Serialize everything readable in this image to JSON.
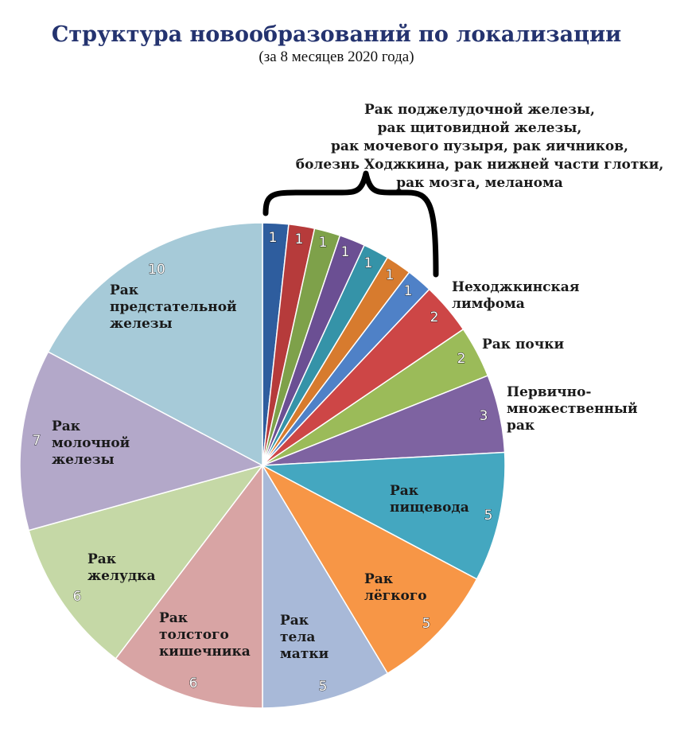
{
  "chart_data": {
    "type": "pie",
    "title": "Структура новообразований по локализации",
    "subtitle": "(за 8 месяцев 2020 года)",
    "slices": [
      {
        "value": 1,
        "label": "",
        "color": "#2e5d9e"
      },
      {
        "value": 1,
        "label": "",
        "color": "#b63b3b"
      },
      {
        "value": 1,
        "label": "",
        "color": "#7ea14a"
      },
      {
        "value": 1,
        "label": "",
        "color": "#6b4f93"
      },
      {
        "value": 1,
        "label": "",
        "color": "#3593a8"
      },
      {
        "value": 1,
        "label": "",
        "color": "#d77b2e"
      },
      {
        "value": 1,
        "label": "",
        "color": "#4f81c7"
      },
      {
        "value": 2,
        "label": "Неходжкинская лимфома",
        "color": "#cd4646"
      },
      {
        "value": 2,
        "label": "Рак почки",
        "color": "#9bbb59"
      },
      {
        "value": 3,
        "label": "Первично-множественный рак",
        "color": "#7e63a1"
      },
      {
        "value": 5,
        "label": "Рак пищевода",
        "color": "#44a7c0"
      },
      {
        "value": 5,
        "label": "Рак лёгкого",
        "color": "#f79646"
      },
      {
        "value": 5,
        "label": "Рак тела матки",
        "color": "#a8b9d8"
      },
      {
        "value": 6,
        "label": "Рак толстого кишечника",
        "color": "#d8a4a4"
      },
      {
        "value": 6,
        "label": "Рак желудка",
        "color": "#c5d8a6"
      },
      {
        "value": 7,
        "label": "Рак молочной железы",
        "color": "#b3a8c9"
      },
      {
        "value": 10,
        "label": "Рак предстательной железы",
        "color": "#a6cad8"
      }
    ],
    "bracket_note": [
      "Рак поджелудочной железы,",
      "рак щитовидной железы,",
      "рак мочевого пузыря, рак яичников,",
      "болезнь Ходжкина, рак нижней части глотки,",
      "рак мозга, меланома"
    ]
  }
}
